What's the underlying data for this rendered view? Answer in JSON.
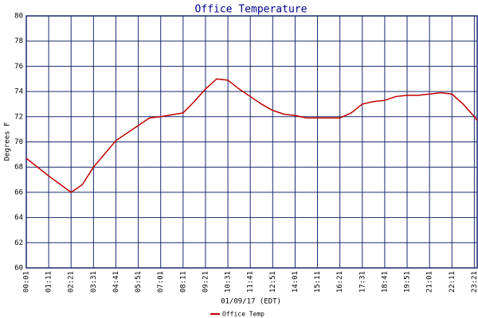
{
  "chart_data": {
    "type": "line",
    "title": "Office Temperature",
    "x_label": "01/09/17 (EDT)",
    "y_label": "Degrees F",
    "x": [
      1,
      71,
      141,
      176,
      211,
      281,
      351,
      386,
      421,
      491,
      526,
      561,
      596,
      631,
      666,
      701,
      736,
      771,
      806,
      841,
      876,
      911,
      946,
      981,
      1016,
      1051,
      1086,
      1121,
      1156,
      1191,
      1226,
      1261,
      1296,
      1331,
      1366,
      1401,
      1410
    ],
    "series": [
      {
        "name": "Office Temp",
        "color": "#c00000",
        "values": [
          68.7,
          67.3,
          66.0,
          66.6,
          68.0,
          70.1,
          71.3,
          71.9,
          72.0,
          72.3,
          73.2,
          74.2,
          75.0,
          74.9,
          74.2,
          73.6,
          73.0,
          72.5,
          72.2,
          72.1,
          71.9,
          71.9,
          71.9,
          71.9,
          72.3,
          73.0,
          73.2,
          73.3,
          73.6,
          73.7,
          73.7,
          73.8,
          73.9,
          73.8,
          73.0,
          72.0,
          71.7
        ]
      }
    ],
    "xlim": [
      1,
      1410
    ],
    "xticks": [
      {
        "value": 1,
        "label": "00:01"
      },
      {
        "value": 71,
        "label": "01:11"
      },
      {
        "value": 141,
        "label": "02:21"
      },
      {
        "value": 211,
        "label": "03:31"
      },
      {
        "value": 281,
        "label": "04:41"
      },
      {
        "value": 351,
        "label": "05:51"
      },
      {
        "value": 421,
        "label": "07:01"
      },
      {
        "value": 491,
        "label": "08:11"
      },
      {
        "value": 561,
        "label": "09:21"
      },
      {
        "value": 631,
        "label": "10:31"
      },
      {
        "value": 701,
        "label": "11:41"
      },
      {
        "value": 771,
        "label": "12:51"
      },
      {
        "value": 841,
        "label": "14:01"
      },
      {
        "value": 911,
        "label": "15:11"
      },
      {
        "value": 981,
        "label": "16:21"
      },
      {
        "value": 1051,
        "label": "17:31"
      },
      {
        "value": 1121,
        "label": "18:41"
      },
      {
        "value": 1191,
        "label": "19:51"
      },
      {
        "value": 1261,
        "label": "21:01"
      },
      {
        "value": 1331,
        "label": "22:11"
      },
      {
        "value": 1401,
        "label": "23:21"
      }
    ],
    "ylim": [
      60,
      80
    ],
    "yticks": [
      60,
      62,
      64,
      66,
      68,
      70,
      72,
      74,
      76,
      78,
      80
    ],
    "grid": true,
    "grid_color": "#1a2a6c"
  }
}
